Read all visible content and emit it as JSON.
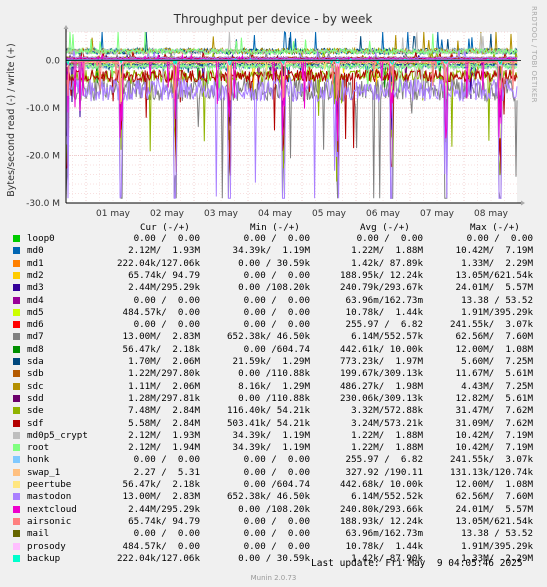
{
  "chart_data": {
    "type": "line",
    "title": "Throughput per device - by week",
    "ylabel": "Bytes/second read (-) / write (+)",
    "ylim": [
      -30000000,
      6000000
    ],
    "yticks": [
      {
        "value": 0,
        "label": "0.0"
      },
      {
        "value": -10000000,
        "label": "-10.0 M"
      },
      {
        "value": -20000000,
        "label": "-20.0 M"
      },
      {
        "value": -30000000,
        "label": "-30.0 M"
      }
    ],
    "xticks": [
      "01 may",
      "02 may",
      "03 may",
      "04 may",
      "05 may",
      "06 may",
      "07 may",
      "08 may"
    ],
    "grid": true,
    "side_label": "RRDTOOL / TOBI OETIKER",
    "legend_header": {
      "cur": "Cur (-/+)",
      "min": "Min (-/+)",
      "avg": "Avg (-/+)",
      "max": "Max (-/+)"
    },
    "series": [
      {
        "name": "loop0",
        "color": "#00cc00",
        "cur": "0.00 /  0.00",
        "min": "0.00 /  0.00",
        "avg": "0.00 /  0.00",
        "max": "0.00 /  0.00"
      },
      {
        "name": "md0",
        "color": "#0066b3",
        "cur": "2.12M/  1.93M",
        "min": "34.39k/  1.19M",
        "avg": "1.22M/  1.88M",
        "max": "10.42M/  7.19M"
      },
      {
        "name": "md1",
        "color": "#ff8000",
        "cur": "222.04k/127.06k",
        "min": "0.00 / 30.59k",
        "avg": "1.42k/ 87.89k",
        "max": "1.33M/  2.29M"
      },
      {
        "name": "md2",
        "color": "#ffcc00",
        "cur": "65.74k/ 94.79",
        "min": "0.00 /  0.00",
        "avg": "188.95k/ 12.24k",
        "max": "13.05M/621.54k"
      },
      {
        "name": "md3",
        "color": "#330099",
        "cur": "2.44M/295.29k",
        "min": "0.00 /108.20k",
        "avg": "240.79k/293.67k",
        "max": "24.01M/  5.57M"
      },
      {
        "name": "md4",
        "color": "#990099",
        "cur": "0.00 /  0.00",
        "min": "0.00 /  0.00",
        "avg": "63.96m/162.73m",
        "max": "13.38 / 53.52"
      },
      {
        "name": "md5",
        "color": "#ccff00",
        "cur": "484.57k/  0.00",
        "min": "0.00 /  0.00",
        "avg": "10.78k/  1.44k",
        "max": "1.91M/395.29k"
      },
      {
        "name": "md6",
        "color": "#ff0000",
        "cur": "0.00 /  0.00",
        "min": "0.00 /  0.00",
        "avg": "255.97 /  6.82",
        "max": "241.55k/  3.07k"
      },
      {
        "name": "md7",
        "color": "#808080",
        "cur": "13.00M/  2.83M",
        "min": "652.38k/ 46.50k",
        "avg": "6.14M/552.57k",
        "max": "62.56M/  7.60M"
      },
      {
        "name": "md8",
        "color": "#008f00",
        "cur": "56.47k/  2.18k",
        "min": "0.00 /604.74",
        "avg": "442.61k/ 10.00k",
        "max": "12.00M/  1.08M"
      },
      {
        "name": "sda",
        "color": "#00487d",
        "cur": "1.70M/  2.06M",
        "min": "21.59k/  1.29M",
        "avg": "773.23k/  1.97M",
        "max": "5.60M/  7.25M"
      },
      {
        "name": "sdb",
        "color": "#b35a00",
        "cur": "1.22M/297.80k",
        "min": "0.00 /110.88k",
        "avg": "199.67k/309.13k",
        "max": "11.67M/  5.61M"
      },
      {
        "name": "sdc",
        "color": "#b38f00",
        "cur": "1.11M/  2.06M",
        "min": "8.16k/  1.29M",
        "avg": "486.27k/  1.98M",
        "max": "4.43M/  7.25M"
      },
      {
        "name": "sdd",
        "color": "#6b006b",
        "cur": "1.28M/297.81k",
        "min": "0.00 /110.88k",
        "avg": "230.06k/309.13k",
        "max": "12.82M/  5.61M"
      },
      {
        "name": "sde",
        "color": "#8fb300",
        "cur": "7.48M/  2.84M",
        "min": "116.40k/ 54.21k",
        "avg": "3.32M/572.88k",
        "max": "31.47M/  7.62M"
      },
      {
        "name": "sdf",
        "color": "#b30000",
        "cur": "5.58M/  2.84M",
        "min": "503.41k/ 54.21k",
        "avg": "3.24M/573.21k",
        "max": "31.09M/  7.62M"
      },
      {
        "name": "md0p5_crypt",
        "color": "#bebebe",
        "cur": "2.12M/  1.93M",
        "min": "34.39k/  1.19M",
        "avg": "1.22M/  1.88M",
        "max": "10.42M/  7.19M"
      },
      {
        "name": "root",
        "color": "#80ff80",
        "cur": "2.12M/  1.94M",
        "min": "34.39k/  1.19M",
        "avg": "1.22M/  1.88M",
        "max": "10.42M/  7.19M"
      },
      {
        "name": "honk",
        "color": "#80c9ff",
        "cur": "0.00 /  0.00",
        "min": "0.00 /  0.00",
        "avg": "255.97 /  6.82",
        "max": "241.55k/  3.07k"
      },
      {
        "name": "swap_1",
        "color": "#ffc080",
        "cur": "2.27 /  5.31",
        "min": "0.00 /  0.00",
        "avg": "327.92 /190.11",
        "max": "131.13k/120.74k"
      },
      {
        "name": "peertube",
        "color": "#ffe680",
        "cur": "56.47k/  2.18k",
        "min": "0.00 /604.74",
        "avg": "442.68k/ 10.00k",
        "max": "12.00M/  1.08M"
      },
      {
        "name": "mastodon",
        "color": "#aa80ff",
        "cur": "13.00M/  2.83M",
        "min": "652.38k/ 46.50k",
        "avg": "6.14M/552.52k",
        "max": "62.56M/  7.60M"
      },
      {
        "name": "nextcloud",
        "color": "#ee00cc",
        "cur": "2.44M/295.29k",
        "min": "0.00 /108.20k",
        "avg": "240.80k/293.66k",
        "max": "24.01M/  5.57M"
      },
      {
        "name": "airsonic",
        "color": "#ff8080",
        "cur": "65.74k/ 94.79",
        "min": "0.00 /  0.00",
        "avg": "188.93k/ 12.24k",
        "max": "13.05M/621.54k"
      },
      {
        "name": "mail",
        "color": "#666600",
        "cur": "0.00 /  0.00",
        "min": "0.00 /  0.00",
        "avg": "63.96m/162.73m",
        "max": "13.38 / 53.52"
      },
      {
        "name": "prosody",
        "color": "#ffbfff",
        "cur": "484.57k/  0.00",
        "min": "0.00 /  0.00",
        "avg": "10.78k/  1.44k",
        "max": "1.91M/395.29k"
      },
      {
        "name": "backup",
        "color": "#00ffcc",
        "cur": "222.04k/127.06k",
        "min": "0.00 / 30.59k",
        "avg": "1.42k/ 87.90k",
        "max": "1.33M/  2.29M"
      }
    ]
  },
  "last_update": "Last update: Fri May  9 04:05:46 2025",
  "footer": "Munin 2.0.73"
}
